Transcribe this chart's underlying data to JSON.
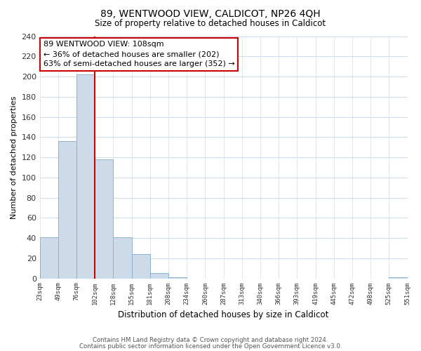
{
  "title": "89, WENTWOOD VIEW, CALDICOT, NP26 4QH",
  "subtitle": "Size of property relative to detached houses in Caldicot",
  "xlabel": "Distribution of detached houses by size in Caldicot",
  "ylabel": "Number of detached properties",
  "bar_values": [
    41,
    136,
    202,
    118,
    41,
    24,
    5,
    1,
    0,
    0,
    0,
    0,
    0,
    0,
    0,
    0,
    0,
    0,
    0,
    1
  ],
  "bar_labels": [
    "23sqm",
    "49sqm",
    "76sqm",
    "102sqm",
    "128sqm",
    "155sqm",
    "181sqm",
    "208sqm",
    "234sqm",
    "260sqm",
    "287sqm",
    "313sqm",
    "340sqm",
    "366sqm",
    "393sqm",
    "419sqm",
    "445sqm",
    "472sqm",
    "498sqm",
    "525sqm",
    "551sqm"
  ],
  "bar_color": "#ccdaea",
  "bar_edge_color": "#8ab4cc",
  "vline_color": "#cc0000",
  "annotation_text": "89 WENTWOOD VIEW: 108sqm\n← 36% of detached houses are smaller (202)\n63% of semi-detached houses are larger (352) →",
  "annotation_box_color": "#ffffff",
  "annotation_box_edge": "#cc0000",
  "ylim": [
    0,
    240
  ],
  "grid_color": "#d0dce8",
  "footer_line1": "Contains HM Land Registry data © Crown copyright and database right 2024.",
  "footer_line2": "Contains public sector information licensed under the Open Government Licence v3.0.",
  "background_color": "#ffffff"
}
